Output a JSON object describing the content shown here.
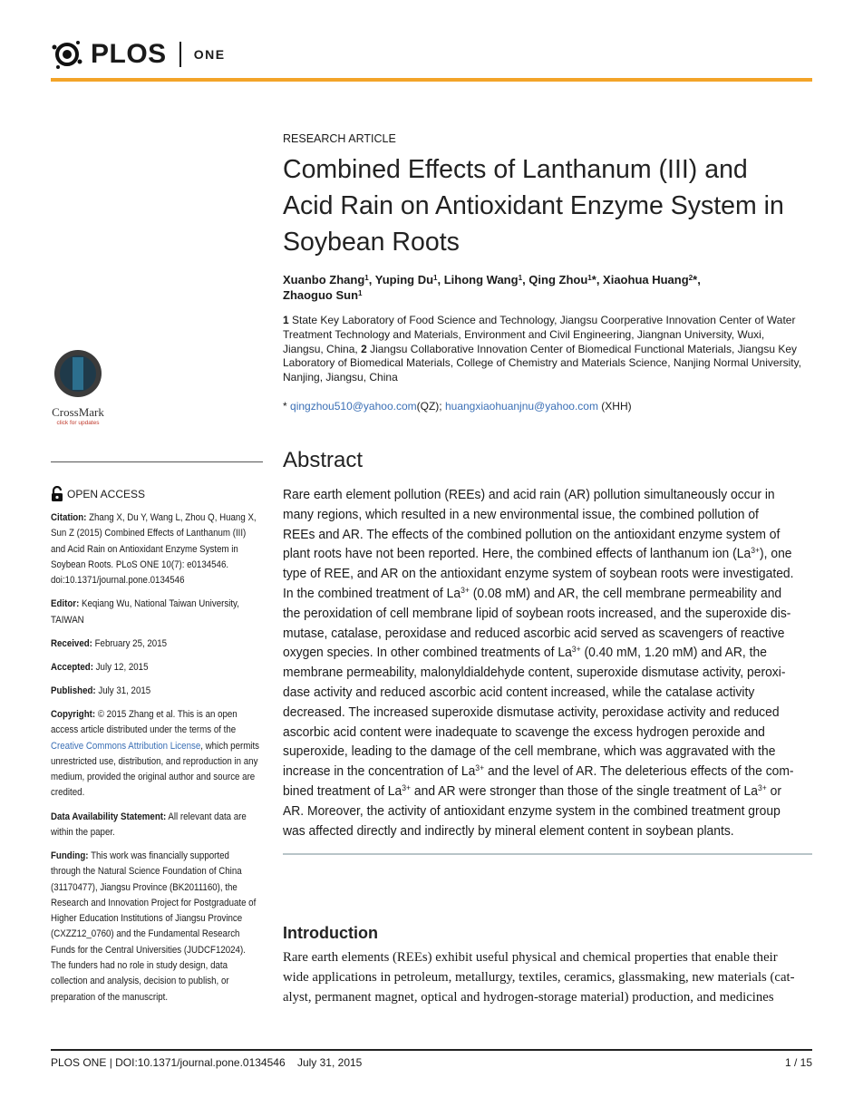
{
  "header": {
    "logo": "PLOS",
    "journal": "ONE"
  },
  "article_type": "RESEARCH ARTICLE",
  "title": [
    "Combined Effects of Lanthanum (III) and",
    "Acid Rain on Antioxidant Enzyme System in",
    "Soybean Roots"
  ],
  "authors": [
    [
      "Xuanbo Zhang",
      {
        "sup": "1"
      },
      ", Yuping Du",
      {
        "sup": "1"
      },
      ", Lihong Wang",
      {
        "sup": "1"
      },
      ", Qing Zhou",
      {
        "sup": "1"
      },
      "*, Xiaohua Huang",
      {
        "sup": "2"
      },
      "*,"
    ],
    [
      "Zhaoguo Sun",
      {
        "sup": "1"
      }
    ]
  ],
  "affiliations": [
    [
      {
        "b": "1"
      },
      " State Key Laboratory of Food Science and Technology, Jiangsu Coorperative Innovation Center of Water"
    ],
    [
      "Treatment Technology and Materials, Environment and Civil Engineering, Jiangnan University, Wuxi,"
    ],
    [
      "Jiangsu, China, ",
      {
        "b": "2"
      },
      " Jiangsu Collaborative Innovation Center of Biomedical Functional Materials, Jiangsu Key"
    ],
    [
      "Laboratory of Biomedical Materials, College of Chemistry and Materials Science, Nanjing Normal University,"
    ],
    [
      "Nanjing, Jiangsu, China"
    ]
  ],
  "correspondence": [
    [
      "* ",
      {
        "link": "qingzhou510@yahoo.com"
      },
      "(QZ); ",
      {
        "link": "huangxiaohuanjnu@yahoo.com"
      },
      " (XHH)"
    ]
  ],
  "crossmark": {
    "label": "CrossMark",
    "sublabel": "click for updates"
  },
  "open_access": "OPEN ACCESS",
  "sidebar": [
    [
      [
        {
          "b": "Citation:"
        },
        " Zhang X, Du Y, Wang L, Zhou Q, Huang X,"
      ],
      [
        "Sun Z (2015) Combined Effects of Lanthanum (III)"
      ],
      [
        "and Acid Rain on Antioxidant Enzyme System in"
      ],
      [
        "Soybean Roots. PLoS ONE 10(7): e0134546."
      ],
      [
        "doi:10.1371/journal.pone.0134546"
      ]
    ],
    [
      [
        {
          "b": "Editor:"
        },
        " Keqiang Wu, National Taiwan University,"
      ],
      [
        "TAIWAN"
      ]
    ],
    [
      [
        {
          "b": "Received:"
        },
        " February 25, 2015"
      ]
    ],
    [
      [
        {
          "b": "Accepted:"
        },
        " July 12, 2015"
      ]
    ],
    [
      [
        {
          "b": "Published:"
        },
        " July 31, 2015"
      ]
    ],
    [
      [
        {
          "b": "Copyright:"
        },
        " © 2015 Zhang et al. This is an open"
      ],
      [
        "access article distributed under the terms of the"
      ],
      [
        {
          "link": "Creative Commons Attribution License"
        },
        ", which permits"
      ],
      [
        "unrestricted use, distribution, and reproduction in any"
      ],
      [
        "medium, provided the original author and source are"
      ],
      [
        "credited."
      ]
    ],
    [
      [
        {
          "b": "Data Availability Statement:"
        },
        " All relevant data are"
      ],
      [
        "within the paper."
      ]
    ],
    [
      [
        {
          "b": "Funding:"
        },
        " This work was financially supported"
      ],
      [
        "through the Natural Science Foundation of China"
      ],
      [
        "(31170477), Jiangsu Province (BK2011160), the"
      ],
      [
        "Research and Innovation Project for Postgraduate of"
      ],
      [
        "Higher Education Institutions of Jiangsu Province"
      ],
      [
        "(CXZZ12_0760) and the Fundamental Research"
      ],
      [
        "Funds for the Central Universities (JUDCF12024)."
      ],
      [
        "The funders had no role in study design, data"
      ],
      [
        "collection and analysis, decision to publish, or"
      ],
      [
        "preparation of the manuscript."
      ]
    ]
  ],
  "abstract": {
    "heading": "Abstract",
    "lines": [
      [
        "Rare earth element pollution (REEs) and acid rain (AR) pollution simultaneously occur in"
      ],
      [
        "many regions, which resulted in a new environmental issue, the combined pollution of"
      ],
      [
        "REEs and AR. The effects of the combined pollution on the antioxidant enzyme system of"
      ],
      [
        "plant roots have not been reported. Here, the combined effects of lanthanum ion (La",
        {
          "sup": "3+"
        },
        "), one"
      ],
      [
        "type of REE, and AR on the antioxidant enzyme system of soybean roots were investigated."
      ],
      [
        "In the combined treatment of La",
        {
          "sup": "3+"
        },
        " (0.08 mM) and AR, the cell membrane permeability and"
      ],
      [
        "the peroxidation of cell membrane lipid of soybean roots increased, and the superoxide dis-"
      ],
      [
        "mutase, catalase, peroxidase and reduced ascorbic acid served as scavengers of reactive"
      ],
      [
        "oxygen species. In other combined treatments of La",
        {
          "sup": "3+"
        },
        " (0.40 mM, 1.20 mM) and AR, the"
      ],
      [
        "membrane permeability, malonyldialdehyde content, superoxide dismutase activity, peroxi-"
      ],
      [
        "dase activity and reduced ascorbic acid content increased, while the catalase activity"
      ],
      [
        "decreased. The increased superoxide dismutase activity, peroxidase activity and reduced"
      ],
      [
        "ascorbic acid content were inadequate to scavenge the excess hydrogen peroxide and"
      ],
      [
        "superoxide, leading to the damage of the cell membrane, which was aggravated with the"
      ],
      [
        "increase in the concentration of La",
        {
          "sup": "3+"
        },
        " and the level of AR. The deleterious effects of the com-"
      ],
      [
        "bined treatment of La",
        {
          "sup": "3+"
        },
        " and AR were stronger than those of the single treatment of La",
        {
          "sup": "3+"
        },
        " or"
      ],
      [
        "AR. Moreover, the activity of antioxidant enzyme system in the combined treatment group"
      ],
      [
        "was affected directly and indirectly by mineral element content in soybean plants."
      ]
    ]
  },
  "introduction": {
    "heading": "Introduction",
    "lines": [
      [
        "Rare earth elements (REEs) exhibit useful physical and chemical properties that enable their"
      ],
      [
        "wide applications in petroleum, metallurgy, textiles, ceramics, glassmaking, new materials (cat-"
      ],
      [
        "alyst, permanent magnet, optical and hydrogen-storage material) production, and medicines"
      ]
    ]
  },
  "footer": {
    "citation": "PLOS ONE | DOI:10.1371/journal.pone.0134546    July 31, 2015",
    "page": "1 / 15"
  }
}
